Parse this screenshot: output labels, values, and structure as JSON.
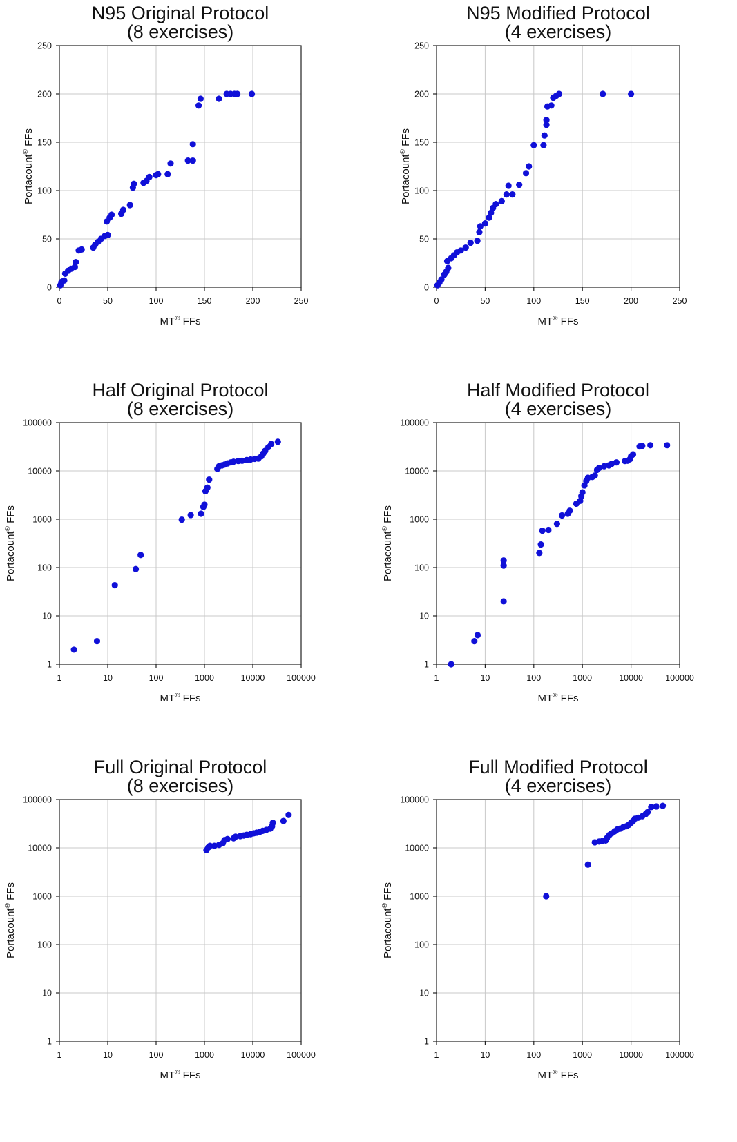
{
  "chart_data": [
    {
      "type": "scatter",
      "title": [
        "N95 Original Protocol",
        "(8 exercises)"
      ],
      "xlabel": "MT",
      "xlabel_sup": "®",
      "xlabel_suffix": " FFs",
      "ylabel": "Portacount",
      "ylabel_sup": "®",
      "ylabel_suffix": " FFs",
      "scale": "linear",
      "xlim": [
        0,
        250
      ],
      "ylim": [
        0,
        250
      ],
      "xticks": [
        0,
        50,
        100,
        150,
        200,
        250
      ],
      "yticks": [
        0,
        50,
        100,
        150,
        200,
        250
      ],
      "xtick_labels": [
        "0",
        "50",
        "100",
        "150",
        "200",
        "250"
      ],
      "ytick_labels": [
        "0",
        "50",
        "100",
        "150",
        "200",
        "250"
      ],
      "grid": true,
      "marker_color": "#1010d8",
      "points": [
        [
          1,
          2
        ],
        [
          2,
          5
        ],
        [
          3,
          6
        ],
        [
          5,
          7
        ],
        [
          6,
          14
        ],
        [
          9,
          17
        ],
        [
          12,
          19
        ],
        [
          16,
          21
        ],
        [
          17,
          26
        ],
        [
          20,
          38
        ],
        [
          23,
          39
        ],
        [
          35,
          41
        ],
        [
          37,
          44
        ],
        [
          40,
          47
        ],
        [
          43,
          50
        ],
        [
          47,
          53
        ],
        [
          50,
          54
        ],
        [
          49,
          68
        ],
        [
          52,
          72
        ],
        [
          54,
          75
        ],
        [
          64,
          76
        ],
        [
          66,
          80
        ],
        [
          73,
          85
        ],
        [
          76,
          103
        ],
        [
          77,
          107
        ],
        [
          87,
          108
        ],
        [
          90,
          110
        ],
        [
          93,
          114
        ],
        [
          100,
          116
        ],
        [
          102,
          117
        ],
        [
          112,
          117
        ],
        [
          115,
          128
        ],
        [
          133,
          131
        ],
        [
          138,
          131
        ],
        [
          138,
          148
        ],
        [
          144,
          188
        ],
        [
          146,
          195
        ],
        [
          165,
          195
        ],
        [
          173,
          200
        ],
        [
          177,
          200
        ],
        [
          181,
          200
        ],
        [
          184,
          200
        ],
        [
          199,
          200
        ]
      ]
    },
    {
      "type": "scatter",
      "title": [
        "N95 Modified Protocol",
        "(4 exercises)"
      ],
      "xlabel": "MT",
      "xlabel_sup": "®",
      "xlabel_suffix": " FFs",
      "ylabel": "Portacount",
      "ylabel_sup": "®",
      "ylabel_suffix": " FFs",
      "scale": "linear",
      "xlim": [
        0,
        250
      ],
      "ylim": [
        0,
        250
      ],
      "xticks": [
        0,
        50,
        100,
        150,
        200,
        250
      ],
      "yticks": [
        0,
        50,
        100,
        150,
        200,
        250
      ],
      "xtick_labels": [
        "0",
        "50",
        "100",
        "150",
        "200",
        "250"
      ],
      "ytick_labels": [
        "0",
        "50",
        "100",
        "150",
        "200",
        "250"
      ],
      "grid": true,
      "marker_color": "#1010d8",
      "points": [
        [
          1,
          2
        ],
        [
          3,
          5
        ],
        [
          5,
          8
        ],
        [
          8,
          13
        ],
        [
          10,
          16
        ],
        [
          12,
          20
        ],
        [
          11,
          27
        ],
        [
          15,
          30
        ],
        [
          18,
          33
        ],
        [
          21,
          36
        ],
        [
          25,
          38
        ],
        [
          30,
          41
        ],
        [
          35,
          46
        ],
        [
          42,
          48
        ],
        [
          44,
          57
        ],
        [
          45,
          63
        ],
        [
          50,
          66
        ],
        [
          54,
          72
        ],
        [
          56,
          77
        ],
        [
          58,
          82
        ],
        [
          61,
          86
        ],
        [
          67,
          89
        ],
        [
          72,
          96
        ],
        [
          74,
          105
        ],
        [
          78,
          96
        ],
        [
          85,
          106
        ],
        [
          92,
          118
        ],
        [
          95,
          125
        ],
        [
          100,
          147
        ],
        [
          110,
          147
        ],
        [
          111,
          157
        ],
        [
          113,
          168
        ],
        [
          113,
          173
        ],
        [
          114,
          187
        ],
        [
          118,
          188
        ],
        [
          120,
          196
        ],
        [
          123,
          198
        ],
        [
          126,
          200
        ],
        [
          171,
          200
        ],
        [
          200,
          200
        ]
      ]
    },
    {
      "type": "scatter",
      "title": [
        "Half Original Protocol",
        "(8 exercises)"
      ],
      "xlabel": "MT",
      "xlabel_sup": "®",
      "xlabel_suffix": " FFs",
      "ylabel": "Portacount",
      "ylabel_sup": "®",
      "ylabel_suffix": " FFs",
      "scale": "log",
      "xlim": [
        1,
        100000
      ],
      "ylim": [
        1,
        100000
      ],
      "xticks": [
        1,
        10,
        100,
        1000,
        10000,
        100000
      ],
      "yticks": [
        1,
        10,
        100,
        1000,
        10000,
        100000
      ],
      "xtick_labels": [
        "1",
        "10",
        "100",
        "1000",
        "10000",
        "100000"
      ],
      "ytick_labels": [
        "1",
        "10",
        "100",
        "1000",
        "10000",
        "100000"
      ],
      "grid": true,
      "marker_color": "#1010d8",
      "points": [
        [
          2,
          2
        ],
        [
          6,
          3
        ],
        [
          14,
          43
        ],
        [
          38,
          93
        ],
        [
          48,
          182
        ],
        [
          340,
          980
        ],
        [
          520,
          1220
        ],
        [
          850,
          1300
        ],
        [
          950,
          1800
        ],
        [
          1000,
          2000
        ],
        [
          1050,
          3800
        ],
        [
          1150,
          4500
        ],
        [
          1250,
          6600
        ],
        [
          1850,
          11000
        ],
        [
          2000,
          12500
        ],
        [
          2300,
          13000
        ],
        [
          2600,
          13500
        ],
        [
          3000,
          14300
        ],
        [
          3500,
          15000
        ],
        [
          4000,
          15500
        ],
        [
          5000,
          16000
        ],
        [
          6000,
          16200
        ],
        [
          7500,
          16800
        ],
        [
          9000,
          17200
        ],
        [
          11000,
          17800
        ],
        [
          13000,
          18000
        ],
        [
          15000,
          20000
        ],
        [
          16500,
          23000
        ],
        [
          18000,
          26000
        ],
        [
          21000,
          31000
        ],
        [
          24000,
          36000
        ],
        [
          33000,
          40000
        ]
      ]
    },
    {
      "type": "scatter",
      "title": [
        "Half Modified Protocol",
        "(4 exercises)"
      ],
      "xlabel": "MT",
      "xlabel_sup": "®",
      "xlabel_suffix": " FFs",
      "ylabel": "Portacount",
      "ylabel_sup": "®",
      "ylabel_suffix": " FFs",
      "scale": "log",
      "xlim": [
        1,
        100000
      ],
      "ylim": [
        1,
        100000
      ],
      "xticks": [
        1,
        10,
        100,
        1000,
        10000,
        100000
      ],
      "yticks": [
        1,
        10,
        100,
        1000,
        10000,
        100000
      ],
      "xtick_labels": [
        "1",
        "10",
        "100",
        "1000",
        "10000",
        "100000"
      ],
      "ytick_labels": [
        "1",
        "10",
        "100",
        "1000",
        "10000",
        "100000"
      ],
      "grid": true,
      "marker_color": "#1010d8",
      "points": [
        [
          2,
          1
        ],
        [
          6,
          3
        ],
        [
          7,
          4
        ],
        [
          24,
          20
        ],
        [
          24,
          110
        ],
        [
          24,
          140
        ],
        [
          130,
          200
        ],
        [
          140,
          300
        ],
        [
          150,
          580
        ],
        [
          200,
          600
        ],
        [
          300,
          800
        ],
        [
          380,
          1200
        ],
        [
          500,
          1300
        ],
        [
          550,
          1500
        ],
        [
          750,
          2100
        ],
        [
          900,
          2400
        ],
        [
          950,
          3000
        ],
        [
          1000,
          3600
        ],
        [
          1100,
          5000
        ],
        [
          1200,
          6200
        ],
        [
          1300,
          7200
        ],
        [
          1600,
          7500
        ],
        [
          1800,
          8000
        ],
        [
          2000,
          10500
        ],
        [
          2200,
          11500
        ],
        [
          2800,
          12500
        ],
        [
          3500,
          13000
        ],
        [
          4000,
          14000
        ],
        [
          5000,
          15000
        ],
        [
          7500,
          16000
        ],
        [
          8500,
          16200
        ],
        [
          9500,
          17500
        ],
        [
          10000,
          20000
        ],
        [
          11000,
          22000
        ],
        [
          15000,
          32000
        ],
        [
          17000,
          33000
        ],
        [
          25000,
          34000
        ],
        [
          55000,
          34000
        ]
      ]
    },
    {
      "type": "scatter",
      "title": [
        "Full Original Protocol",
        "(8 exercises)"
      ],
      "xlabel": "MT",
      "xlabel_sup": "®",
      "xlabel_suffix": " FFs",
      "ylabel": "Portacount",
      "ylabel_sup": "®",
      "ylabel_suffix": " FFs",
      "scale": "log",
      "xlim": [
        1,
        100000
      ],
      "ylim": [
        1,
        100000
      ],
      "xticks": [
        1,
        10,
        100,
        1000,
        10000,
        100000
      ],
      "yticks": [
        1,
        10,
        100,
        1000,
        10000,
        100000
      ],
      "xtick_labels": [
        "1",
        "10",
        "100",
        "1000",
        "10000",
        "100000"
      ],
      "ytick_labels": [
        "1",
        "10",
        "100",
        "1000",
        "10000",
        "100000"
      ],
      "grid": true,
      "marker_color": "#1010d8",
      "points": [
        [
          1100,
          9000
        ],
        [
          1200,
          10200
        ],
        [
          1300,
          11000
        ],
        [
          1600,
          11000
        ],
        [
          2000,
          11500
        ],
        [
          2400,
          12500
        ],
        [
          2600,
          14500
        ],
        [
          3000,
          15200
        ],
        [
          4000,
          15800
        ],
        [
          4400,
          17000
        ],
        [
          5500,
          17500
        ],
        [
          6500,
          18000
        ],
        [
          7500,
          18600
        ],
        [
          9000,
          19200
        ],
        [
          10500,
          20000
        ],
        [
          12000,
          20600
        ],
        [
          14000,
          21500
        ],
        [
          16000,
          22500
        ],
        [
          19000,
          23500
        ],
        [
          23000,
          25000
        ],
        [
          25000,
          28000
        ],
        [
          26000,
          33000
        ],
        [
          43000,
          36000
        ],
        [
          55000,
          48000
        ]
      ]
    },
    {
      "type": "scatter",
      "title": [
        "Full Modified Protocol",
        "(4 exercises)"
      ],
      "xlabel": "MT",
      "xlabel_sup": "®",
      "xlabel_suffix": " FFs",
      "ylabel": "Portacount",
      "ylabel_sup": "®",
      "ylabel_suffix": " FFs",
      "scale": "log",
      "xlim": [
        1,
        100000
      ],
      "ylim": [
        1,
        100000
      ],
      "xticks": [
        1,
        10,
        100,
        1000,
        10000,
        100000
      ],
      "yticks": [
        1,
        10,
        100,
        1000,
        10000,
        100000
      ],
      "xtick_labels": [
        "1",
        "10",
        "100",
        "1000",
        "10000",
        "100000"
      ],
      "ytick_labels": [
        "1",
        "10",
        "100",
        "1000",
        "10000",
        "100000"
      ],
      "grid": true,
      "marker_color": "#1010d8",
      "points": [
        [
          180,
          1000
        ],
        [
          1300,
          4500
        ],
        [
          1800,
          13000
        ],
        [
          2200,
          13500
        ],
        [
          2600,
          14000
        ],
        [
          3000,
          14200
        ],
        [
          3200,
          16000
        ],
        [
          3600,
          18500
        ],
        [
          4000,
          20000
        ],
        [
          4600,
          22000
        ],
        [
          5200,
          24000
        ],
        [
          6000,
          25000
        ],
        [
          7000,
          27000
        ],
        [
          8000,
          28000
        ],
        [
          9000,
          30000
        ],
        [
          10000,
          33000
        ],
        [
          11000,
          36000
        ],
        [
          12000,
          40000
        ],
        [
          14000,
          42000
        ],
        [
          17000,
          45000
        ],
        [
          20000,
          50000
        ],
        [
          22000,
          55000
        ],
        [
          26000,
          70000
        ],
        [
          33000,
          72000
        ],
        [
          45000,
          74000
        ]
      ]
    }
  ]
}
